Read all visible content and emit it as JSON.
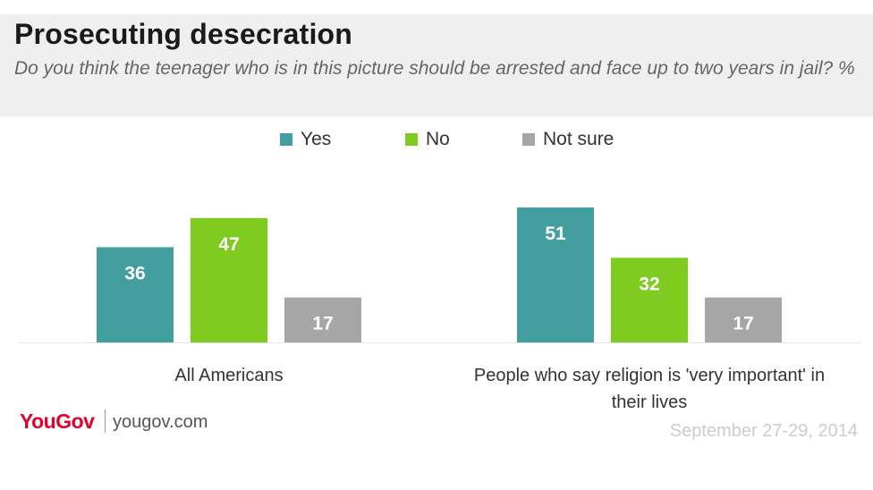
{
  "chart_data": {
    "type": "bar",
    "title": "Prosecuting desecration",
    "subtitle": "Do you think the teenager who is in this picture should be arrested and face up to two years in jail? %",
    "categories": [
      "All Americans",
      "People who say religion is 'very important' in their lives"
    ],
    "series": [
      {
        "name": "Yes",
        "values": [
          36,
          51
        ],
        "color": "#439e9f"
      },
      {
        "name": "No",
        "values": [
          47,
          32
        ],
        "color": "#7fcb1f"
      },
      {
        "name": "Not sure",
        "values": [
          17,
          17
        ],
        "color": "#a6a6a6"
      }
    ],
    "legend_position": "top",
    "grid": false,
    "ylim": [
      0,
      55
    ]
  },
  "footer": {
    "brand": "YouGov",
    "url": "yougov.com",
    "date": "September 27-29, 2014"
  }
}
